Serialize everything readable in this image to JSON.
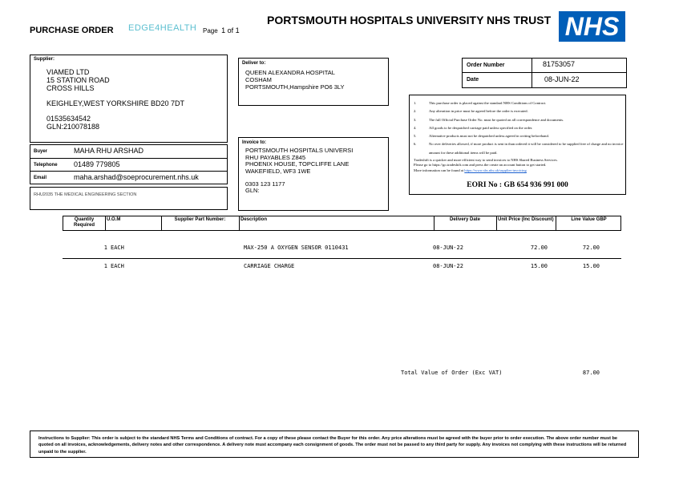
{
  "header": {
    "title": "PURCHASE ORDER",
    "logo_text": "EDGE4HEALTH",
    "page_label": "Page",
    "page_value": "1 of 1",
    "trust_name": "PORTSMOUTH HOSPITALS UNIVERSITY NHS TRUST",
    "nhs_logo": "NHS",
    "nhs_color": "#005EB8",
    "logo_color": "#5bbfd0"
  },
  "supplier": {
    "label": "Supplier:",
    "lines": [
      "VIAMED LTD",
      "15 STATION ROAD",
      "CROSS HILLS",
      "",
      "KEIGHLEY,WEST YORKSHIRE BD20 7DT",
      "",
      "01535634542",
      "GLN:210078188"
    ]
  },
  "buyer": {
    "buyer_label": "Buyer",
    "buyer": "MAHA RHU ARSHAD",
    "telephone_label": "Telephone",
    "telephone": "01489 779805",
    "email_label": "Email",
    "email": "maha.arshad@soeprocurement.nhs.uk"
  },
  "section_note": "RHU2035 THE MEDICAL ENGINEERING SECTION",
  "deliver": {
    "label": "Deliver to:",
    "lines": [
      "QUEEN ALEXANDRA HOSPITAL",
      "COSHAM",
      "PORTSMOUTH,Hampshire PO6 3LY"
    ]
  },
  "invoice": {
    "label": "Invoice to:",
    "lines": [
      "PORTSMOUTH HOSPITALS UNIVERSI",
      "RHU PAYABLES Z845",
      "PHOENIX HOUSE, TOPCLIFFE LANE",
      "WAKEFIELD, WF3 1WE",
      "",
      "0303 123 1177",
      "GLN:"
    ]
  },
  "order": {
    "number_label": "Order Number",
    "number": "81753057",
    "date_label": "Date",
    "date": "08-JUN-22"
  },
  "terms": {
    "items": [
      {
        "n": "1.",
        "text": "This purchase order is placed against the standard NHS Conditions of Contract."
      },
      {
        "n": "2.",
        "text": "Any alteration in price must be agreed before the order is executed."
      },
      {
        "n": "3.",
        "text": "The full Official Purchase Order No. must be quoted on all correspondence and documents."
      },
      {
        "n": "4.",
        "text": "All goods to be despatched carriage paid unless specified on the order."
      },
      {
        "n": "5.",
        "text": "Alternative products must not be despatched unless agreed in writing beforehand."
      },
      {
        "n": "6.",
        "text": "No over deliveries allowed, if more product is sent in than ordered it will be considered to be supplied free of charge and no invoice amount for these additional items will be paid."
      }
    ],
    "tradeshift": [
      "Tradeshift is a quicker and more efficient way to send invoices to NHS Shared Business Services.",
      "Please go to https://go.tradeshift.com and press the create an account button to get started."
    ],
    "more_info": "More information can be found at",
    "link": "https://www.sbs.nhs.uk/supplier-invoicing",
    "eori": "EORI No : GB 654 936 991 000"
  },
  "table": {
    "headers": [
      "Quantity Required",
      "U.O.M",
      "Supplier Part Number:",
      "Description",
      "Delivery Date",
      "Unit Price (Inc Discount)",
      "Line Value GBP"
    ],
    "rows": [
      {
        "qty": "1",
        "uom": "EACH",
        "part": "",
        "desc": "MAX-250 A OXYGEN SENSOR 0110431",
        "date": "08-JUN-22",
        "unit": "72.00",
        "line": "72.00"
      },
      {
        "qty": "1",
        "uom": "EACH",
        "part": "",
        "desc": "CARRIAGE CHARGE",
        "date": "08-JUN-22",
        "unit": "15.00",
        "line": "15.00"
      }
    ],
    "total_label": "Total Value of Order (Exc VAT)",
    "total": "87.00"
  },
  "footer": "Instructions to Supplier: This order is subject to the standard NHS Terms and Conditions of contract. For a copy of these please contact the Buyer for this order. Any price alterations must be agreed with the buyer prior to order execution. The above order number must be quoted on all invoices, acknowledgements, delivery notes and other correspondence. A delivery note must accompany each consignment of goods. The order must not be passed to any third party for supply. Any invoices not complying with these instructions will be returned unpaid to the supplier."
}
